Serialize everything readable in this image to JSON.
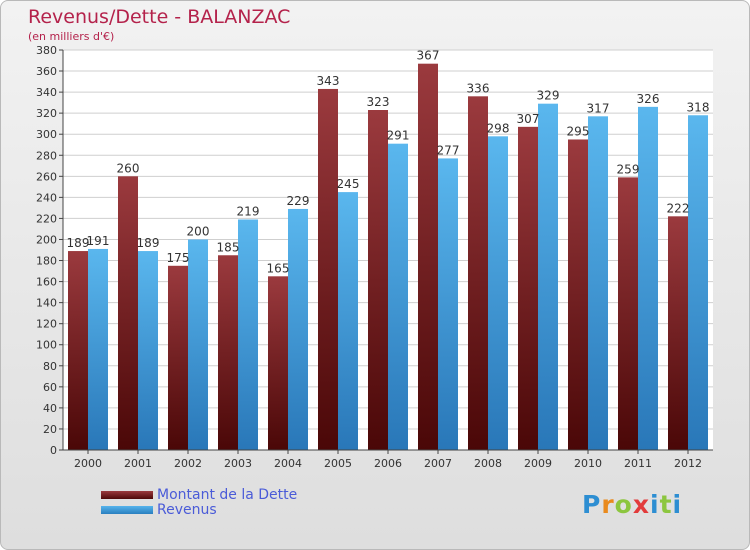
{
  "chart_data": {
    "type": "bar",
    "title": "Revenus/Dette - BALANZAC",
    "subtitle": "(en milliers d'€)",
    "categories": [
      "2000",
      "2001",
      "2002",
      "2003",
      "2004",
      "2005",
      "2006",
      "2007",
      "2008",
      "2009",
      "2010",
      "2011",
      "2012"
    ],
    "series": [
      {
        "name": "Montant de la Dette",
        "color": "#6e1a1d",
        "values": [
          189,
          260,
          175,
          185,
          165,
          343,
          323,
          367,
          336,
          307,
          295,
          259,
          222
        ]
      },
      {
        "name": "Revenus",
        "color": "#3d9ad9",
        "values": [
          191,
          189,
          200,
          219,
          229,
          245,
          291,
          277,
          298,
          329,
          317,
          326,
          318
        ]
      }
    ],
    "ylim": [
      0,
      380
    ],
    "yticks": [
      0,
      20,
      40,
      60,
      80,
      100,
      120,
      140,
      160,
      180,
      200,
      220,
      240,
      260,
      280,
      300,
      320,
      340,
      360,
      380
    ],
    "grid": true,
    "legend": "bottom-left"
  },
  "logo": {
    "text": "Proxiti",
    "colors": [
      "#2d8ed2",
      "#e98a1d",
      "#8cc63f",
      "#e23b3b",
      "#2d8ed2",
      "#8cc63f"
    ]
  }
}
